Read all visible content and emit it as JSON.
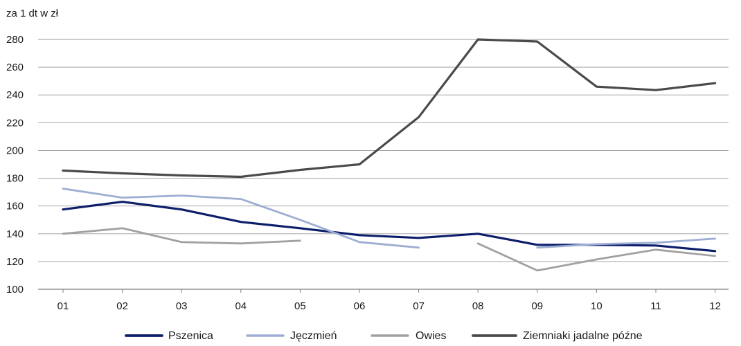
{
  "chart_data": {
    "type": "line",
    "unit_label": "za 1 dt w zł",
    "categories": [
      "01",
      "02",
      "03",
      "04",
      "05",
      "06",
      "07",
      "08",
      "09",
      "10",
      "11",
      "12"
    ],
    "ylim": [
      100,
      280
    ],
    "yticks": [
      100,
      120,
      140,
      160,
      180,
      200,
      220,
      240,
      260,
      280
    ],
    "grid": true,
    "legend_position": "bottom",
    "series": [
      {
        "name": "Pszenica",
        "color": "#0d1f6b",
        "width": 3.2,
        "values": [
          157.5,
          163,
          157.5,
          148.5,
          144,
          139,
          137,
          140,
          132,
          132,
          131.5,
          127.5
        ]
      },
      {
        "name": "Jęczmień",
        "color": "#9eaed3",
        "width": 2.8,
        "values": [
          172.5,
          166,
          167.5,
          165,
          150,
          134,
          130,
          null,
          130,
          132.5,
          133.5,
          136.5
        ]
      },
      {
        "name": "Owies",
        "color": "#a1a1a1",
        "width": 2.8,
        "values": [
          140,
          144,
          134,
          133,
          135,
          null,
          null,
          133,
          113.5,
          121.5,
          128.5,
          124
        ]
      },
      {
        "name": "Ziemniaki jadalne późne",
        "color": "#4a4a4a",
        "width": 3.2,
        "values": [
          185.5,
          183.5,
          182,
          181,
          186,
          190,
          224,
          280,
          278.5,
          246,
          243.5,
          248.5
        ]
      }
    ]
  }
}
